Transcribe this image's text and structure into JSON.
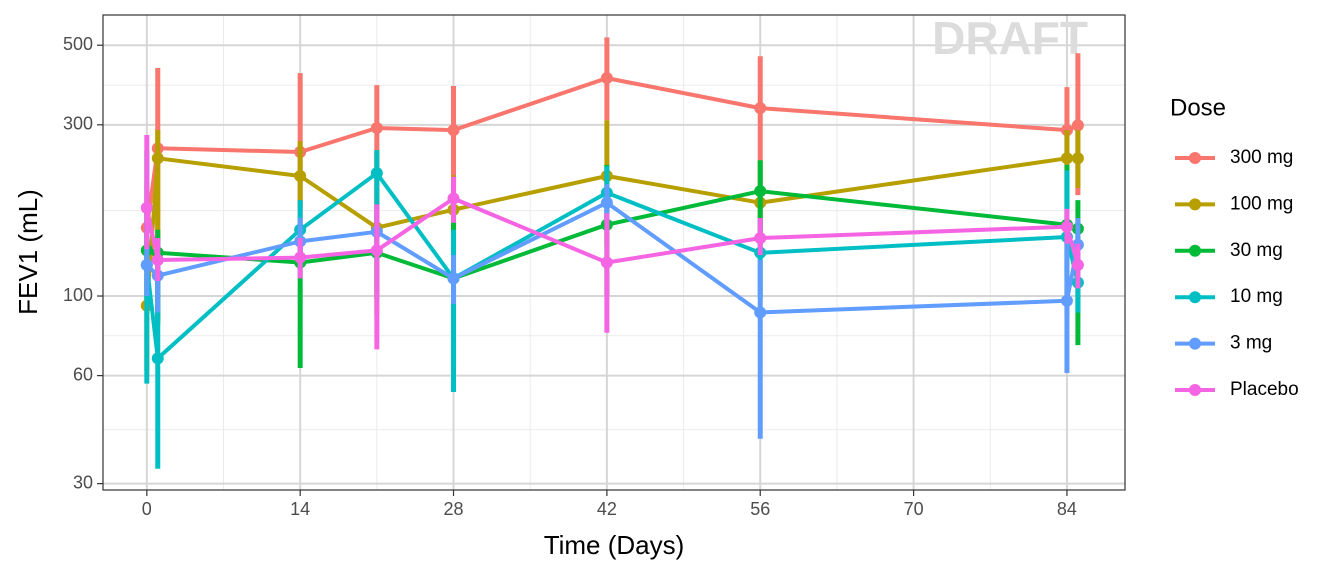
{
  "chart_data": {
    "type": "line",
    "watermark": "DRAFT",
    "x_label": "Time (Days)",
    "y_label": "FEV1 (mL)",
    "legend_title": "Dose",
    "legend_position": "right",
    "x": [
      0,
      1,
      14,
      21,
      28,
      42,
      56,
      84,
      85
    ],
    "xlim": [
      -4,
      89.3
    ],
    "xticks": [
      0,
      14,
      28,
      42,
      56,
      70,
      84
    ],
    "xminor": [
      7,
      21,
      35,
      49,
      63,
      77
    ],
    "ylim": [
      28.8,
      607
    ],
    "ylog": true,
    "yticks": [
      30,
      60,
      100,
      300,
      500
    ],
    "yminor": [
      42.4,
      77.5,
      173,
      387
    ],
    "grid": true,
    "series": [
      {
        "name": "300 mg",
        "color": "#F8766D",
        "values": [
          155,
          258,
          252,
          294,
          290,
          405,
          334,
          290,
          299
        ],
        "lower": [
          122,
          125,
          122,
          153,
          158,
          309,
          239,
          232,
          191
        ],
        "upper": [
          204,
          432,
          418,
          387,
          385,
          526,
          466,
          382,
          475
        ]
      },
      {
        "name": "100 mg",
        "color": "#B79F00",
        "values": [
          94,
          242,
          216,
          155,
          174,
          216,
          182,
          242,
          242
        ],
        "lower": [
          62,
          83,
          175,
          89,
          114,
          139,
          139,
          179,
          200
        ],
        "upper": [
          148,
          290,
          270,
          255,
          217,
          309,
          239,
          290,
          290
        ]
      },
      {
        "name": "30 mg",
        "color": "#00BA38",
        "values": [
          134,
          132,
          124,
          132,
          112,
          158,
          196,
          158,
          154
        ],
        "lower": [
          98,
          85,
          63,
          98,
          62,
          100,
          153,
          111,
          73
        ],
        "upper": [
          175,
          153,
          153,
          168,
          210,
          232,
          239,
          232,
          185
        ]
      },
      {
        "name": "10 mg",
        "color": "#00BFC4",
        "values": [
          122,
          67,
          153,
          220,
          112,
          194,
          132,
          146,
          109
        ],
        "lower": [
          57,
          33,
          125,
          134,
          54,
          165,
          98,
          89,
          90
        ],
        "upper": [
          255,
          130,
          185,
          255,
          153,
          230,
          163,
          224,
          130
        ]
      },
      {
        "name": "3 mg",
        "color": "#619CFF",
        "values": [
          122,
          114,
          142,
          151,
          112,
          182,
          90,
          97,
          139
        ],
        "lower": [
          100,
          90,
          120,
          130,
          95,
          160,
          40,
          61,
          115
        ],
        "upper": [
          150,
          140,
          165,
          175,
          130,
          205,
          126,
          153,
          165
        ]
      },
      {
        "name": "Placebo",
        "color": "#F564E3",
        "values": [
          176,
          126,
          128,
          134,
          187,
          124,
          145,
          156,
          122
        ],
        "lower": [
          135,
          110,
          112,
          71,
          160,
          79,
          130,
          140,
          105
        ],
        "upper": [
          281,
          145,
          145,
          180,
          215,
          170,
          165,
          175,
          140
        ]
      }
    ]
  }
}
